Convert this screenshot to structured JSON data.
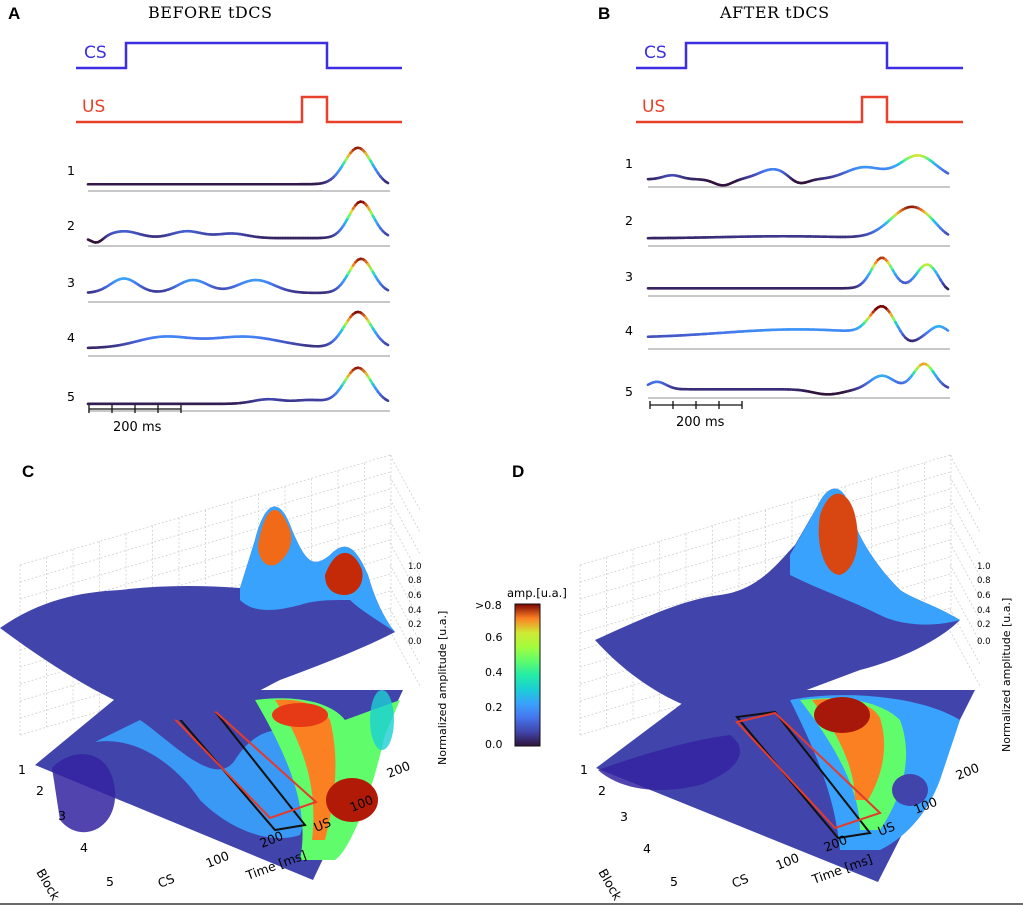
{
  "panels": [
    {
      "id": "A",
      "title": "BEFORE tDCS",
      "cs": "CS",
      "us": "US",
      "scale": "200 ms",
      "trials": [
        "1",
        "2",
        "3",
        "4",
        "5"
      ]
    },
    {
      "id": "B",
      "title": "AFTER tDCS",
      "cs": "CS",
      "us": "US",
      "scale": "200 ms",
      "trials": [
        "1",
        "2",
        "3",
        "4",
        "5"
      ]
    }
  ],
  "panel_c": {
    "label": "C"
  },
  "panel_d": {
    "label": "D"
  },
  "colors": {
    "cs": "#3d2fe0",
    "us": "#e8402a",
    "baseline": "#c8c8c8",
    "box_red": "#e33b2e",
    "box_black": "#111111"
  },
  "chart_data": {
    "type": "surface",
    "xlabel": "Time [ms]",
    "ylabel": "Block",
    "zlabel": "Normalized amplitude [u.a.]",
    "x_ticks": [
      "CS",
      "100",
      "200",
      "US",
      "100",
      "200"
    ],
    "y_ticks": [
      "1",
      "2",
      "3",
      "4",
      "5"
    ],
    "z_ticks": [
      "0.0",
      "0.2",
      "0.4",
      "0.6",
      "0.8",
      "1.0"
    ],
    "zlim": [
      0,
      1
    ],
    "colorbar": {
      "title": "amp.[u.a.]",
      "ticks": [
        ">0.8",
        "0.6",
        "0.4",
        "0.2",
        "0.0"
      ],
      "range": [
        0,
        0.8
      ]
    }
  }
}
